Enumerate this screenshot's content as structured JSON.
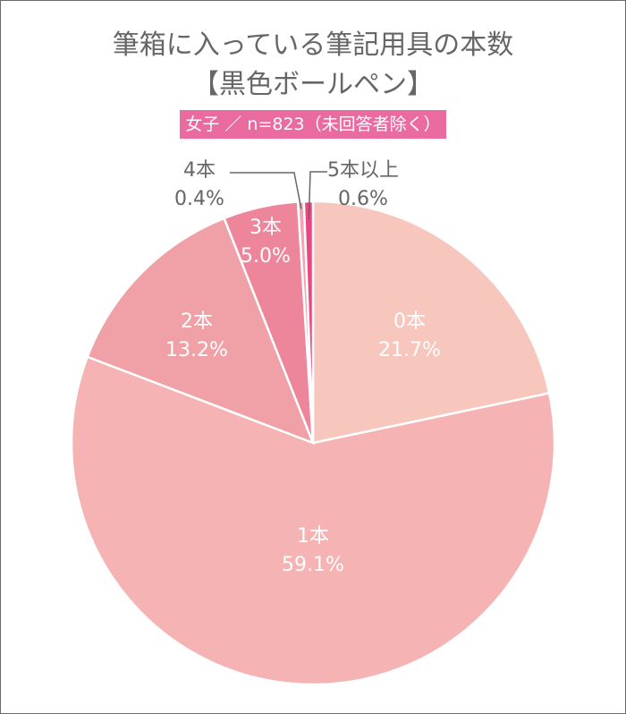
{
  "chart_data": {
    "type": "pie",
    "title": "筆箱に入っている筆記用具の本数",
    "subtitle": "【黒色ボールペン】",
    "badge": "女子 ／ n=823（未回答者除く）",
    "start": "top",
    "direction": "clockwise",
    "slices": [
      {
        "label": "0本",
        "value": 21.7,
        "text": "21.7%",
        "color": "#f7c6bd"
      },
      {
        "label": "1本",
        "value": 59.1,
        "text": "59.1%",
        "color": "#f5b3b3"
      },
      {
        "label": "2本",
        "value": 13.2,
        "text": "13.2%",
        "color": "#f0a0a7"
      },
      {
        "label": "3本",
        "value": 5.0,
        "text": "5.0%",
        "color": "#ee869b"
      },
      {
        "label": "4本",
        "value": 0.4,
        "text": "0.4%",
        "color": "#f2a6b4"
      },
      {
        "label": "5本以上",
        "value": 0.6,
        "text": "0.6%",
        "color": "#e8487f"
      }
    ]
  }
}
